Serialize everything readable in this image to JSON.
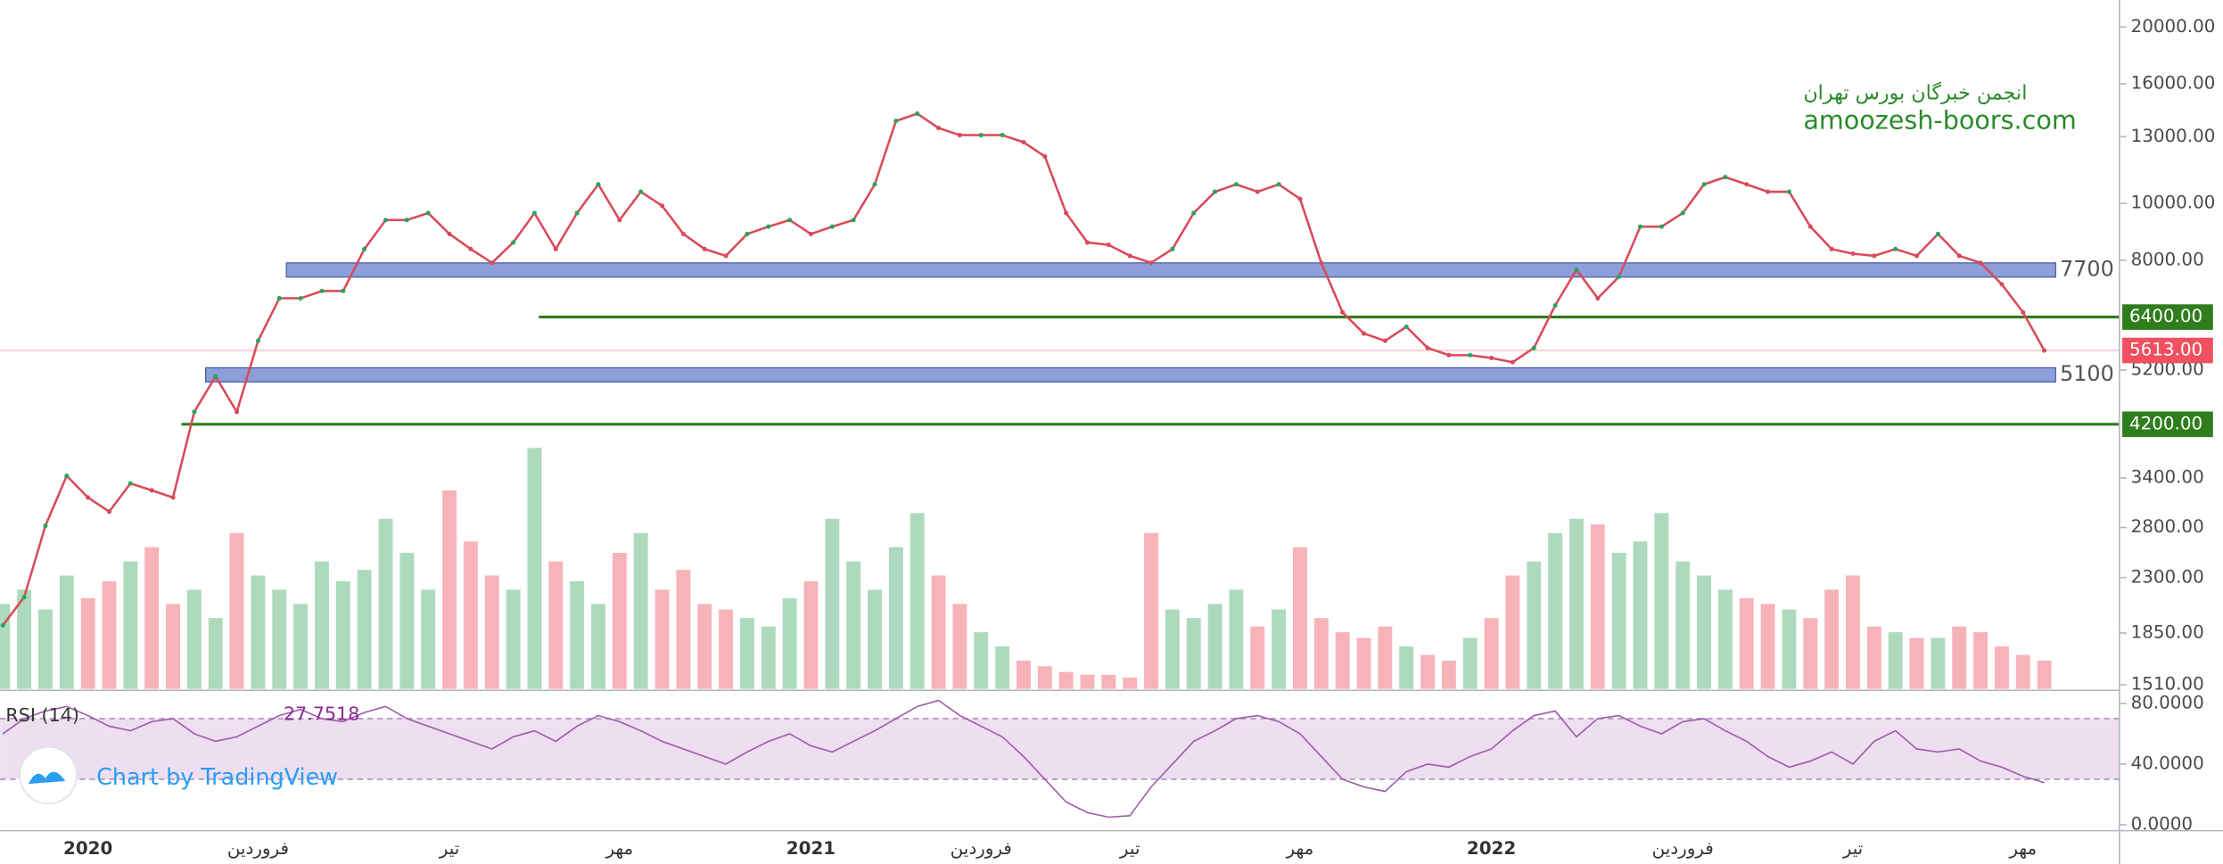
{
  "chart_data": {
    "type": "line",
    "log_scale": true,
    "color": "#d94a5a",
    "ylim": [
      1485,
      22240
    ],
    "yticks": [
      {
        "value": 20000,
        "label": "20000.00"
      },
      {
        "value": 16000,
        "label": "16000.00"
      },
      {
        "value": 13000,
        "label": "13000.00"
      },
      {
        "value": 10000,
        "label": "10000.00"
      },
      {
        "value": 8000,
        "label": "8000.00"
      },
      {
        "value": 5200,
        "label": "5200.00"
      },
      {
        "value": 3400,
        "label": "3400.00"
      },
      {
        "value": 2800,
        "label": "2800.00"
      },
      {
        "value": 2300,
        "label": "2300.00"
      },
      {
        "value": 1850,
        "label": "1850.00"
      },
      {
        "value": 1510,
        "label": "1510.00"
      }
    ],
    "categories": [
      null,
      null,
      null,
      null,
      "2020",
      null,
      null,
      null,
      null,
      null,
      null,
      null,
      "فروردین",
      null,
      null,
      null,
      null,
      null,
      null,
      null,
      null,
      "تیر",
      null,
      null,
      null,
      null,
      null,
      null,
      null,
      "مهر",
      null,
      null,
      null,
      null,
      null,
      null,
      null,
      null,
      "2021",
      null,
      null,
      null,
      null,
      null,
      null,
      null,
      "فروردین",
      null,
      null,
      null,
      null,
      null,
      null,
      "تیر",
      null,
      null,
      null,
      null,
      null,
      null,
      null,
      "مهر",
      null,
      null,
      null,
      null,
      null,
      null,
      null,
      null,
      "2022",
      null,
      null,
      null,
      null,
      null,
      null,
      null,
      null,
      "فروردین",
      null,
      null,
      null,
      null,
      null,
      null,
      null,
      "تیر",
      null,
      null,
      null,
      null,
      null,
      null,
      null,
      "مهر",
      null
    ],
    "values": [
      1907,
      2130,
      2820,
      3430,
      3150,
      2980,
      3330,
      3240,
      3150,
      4410,
      5070,
      4410,
      5830,
      6890,
      6890,
      7090,
      7090,
      8360,
      9370,
      9370,
      9630,
      8870,
      8360,
      7920,
      8580,
      9630,
      8360,
      9630,
      10780,
      9370,
      10470,
      9910,
      8870,
      8360,
      8140,
      8870,
      9130,
      9370,
      8870,
      9130,
      9370,
      10780,
      13830,
      14230,
      13450,
      13080,
      13080,
      13080,
      12720,
      12030,
      9630,
      8580,
      8500,
      8140,
      7920,
      8360,
      9630,
      10470,
      10780,
      10470,
      10780,
      10180,
      7920,
      6520,
      6000,
      5830,
      6160,
      5670,
      5510,
      5510,
      5450,
      5360,
      5670,
      6700,
      7710,
      6890,
      7500,
      9130,
      9130,
      9630,
      10780,
      11090,
      10780,
      10470,
      10470,
      9130,
      8360,
      8210,
      8140,
      8360,
      8140,
      8870,
      8140,
      7920,
      7280,
      6520,
      5613
    ],
    "zones": [
      7700,
      5100
    ],
    "zone_color": "#8c9fd9",
    "lines": [
      {
        "value": 6400,
        "label": "6400.00"
      },
      {
        "value": 4200,
        "label": "4200.00"
      }
    ],
    "line_color": "#2f7d1c",
    "last_price": {
      "value": 5613,
      "label": "5613.00",
      "color": "#f0505f"
    },
    "volume": {
      "up_color": "#9fd4b0",
      "down_color": "#f4a7ad",
      "values": [
        30,
        35,
        28,
        40,
        32,
        38,
        45,
        50,
        30,
        35,
        25,
        55,
        40,
        35,
        30,
        45,
        38,
        42,
        60,
        48,
        35,
        70,
        52,
        40,
        35,
        85,
        45,
        38,
        30,
        48,
        55,
        35,
        42,
        30,
        28,
        25,
        22,
        32,
        38,
        60,
        45,
        35,
        50,
        62,
        40,
        30,
        20,
        15,
        10,
        8,
        6,
        5,
        5,
        4,
        55,
        28,
        25,
        30,
        35,
        22,
        28,
        50,
        25,
        20,
        18,
        22,
        15,
        12,
        10,
        18,
        25,
        40,
        45,
        55,
        60,
        58,
        48,
        52,
        62,
        45,
        40,
        35,
        32,
        30,
        28,
        25,
        35,
        40,
        22,
        20,
        18,
        18,
        22,
        20,
        15,
        12,
        10
      ]
    },
    "rsi": {
      "name": "RSI (14)",
      "color": "#9c5aa8",
      "band_color": "#eddff0",
      "bands": [
        30,
        70
      ],
      "ylim": [
        -3.9,
        87.7
      ],
      "yticks": [
        {
          "value": 80,
          "label": "80.0000"
        },
        {
          "value": 40,
          "label": "40.0000"
        },
        {
          "value": 0,
          "label": "0.0000"
        }
      ],
      "values": [
        60,
        70,
        75,
        78,
        72,
        65,
        62,
        68,
        70,
        60,
        55,
        58,
        65,
        72,
        76,
        70,
        68,
        74,
        78,
        70,
        65,
        60,
        55,
        50,
        58,
        62,
        55,
        65,
        72,
        68,
        62,
        55,
        50,
        45,
        40,
        48,
        55,
        60,
        52,
        48,
        55,
        62,
        70,
        78,
        82,
        72,
        65,
        58,
        45,
        30,
        15,
        8,
        5,
        6,
        25,
        40,
        55,
        62,
        70,
        72,
        68,
        60,
        45,
        30,
        25,
        22,
        35,
        40,
        38,
        45,
        50,
        62,
        72,
        75,
        58,
        70,
        72,
        65,
        60,
        68,
        70,
        62,
        55,
        45,
        38,
        42,
        48,
        40,
        55,
        62,
        50,
        48,
        50,
        42,
        38,
        32,
        27.7518
      ]
    },
    "watermark": {
      "line1": "انجمن خبرگان بورس تهران",
      "line2": "amoozesh-boors.com"
    },
    "branding": "Chart by TradingView"
  }
}
